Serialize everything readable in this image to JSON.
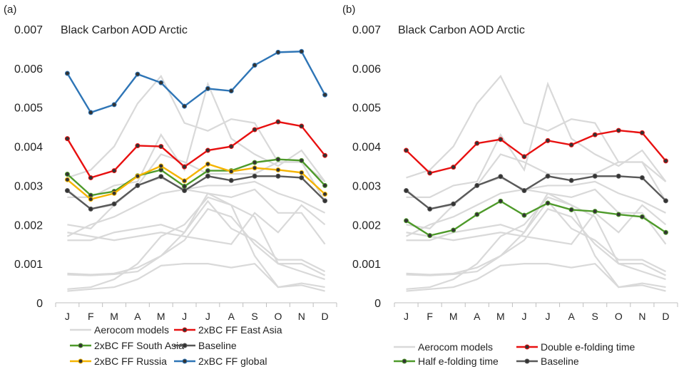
{
  "chart_data": [
    {
      "type": "line",
      "panel_label": "(a)",
      "title": "Black Carbon AOD Arctic",
      "categories": [
        "J",
        "F",
        "M",
        "A",
        "M",
        "J",
        "J",
        "A",
        "S",
        "O",
        "N",
        "D"
      ],
      "ylim": [
        0,
        0.007
      ],
      "yticks": [
        "0",
        "0.001",
        "0.002",
        "0.003",
        "0.004",
        "0.005",
        "0.006",
        "0.007"
      ],
      "grid": false,
      "background_models": [
        [
          0.0032,
          0.0034,
          0.004,
          0.0051,
          0.0058,
          0.0046,
          0.0044,
          0.0047,
          0.0046,
          0.0036,
          0.0036,
          0.0031
        ],
        [
          0.0027,
          0.0027,
          0.003,
          0.0031,
          0.0043,
          0.0034,
          0.0056,
          0.0042,
          0.0038,
          0.0035,
          0.0039,
          0.0031
        ],
        [
          0.0029,
          0.0024,
          0.0025,
          0.003,
          0.0038,
          0.0036,
          0.0033,
          0.0033,
          0.0033,
          0.0036,
          0.0036,
          0.0026
        ],
        [
          0.002,
          0.0019,
          0.0025,
          0.003,
          0.0032,
          0.0029,
          0.003,
          0.003,
          0.0031,
          0.0028,
          0.0026,
          0.0023
        ],
        [
          0.0018,
          0.0017,
          0.0016,
          0.0017,
          0.0018,
          0.0017,
          0.0016,
          0.0015,
          0.0023,
          0.0018,
          0.0025,
          0.002
        ],
        [
          0.0017,
          0.002,
          0.0022,
          0.0025,
          0.0028,
          0.0029,
          0.0028,
          0.0027,
          0.0029,
          0.0023,
          0.0023,
          0.0015
        ],
        [
          0.0016,
          0.0016,
          0.0018,
          0.0019,
          0.002,
          0.0018,
          0.0026,
          0.0019,
          0.0016,
          0.0011,
          0.0011,
          0.0008
        ],
        [
          0.00075,
          0.00072,
          0.00075,
          0.0009,
          0.0012,
          0.0018,
          0.0028,
          0.0025,
          0.0022,
          0.001,
          0.001,
          0.0007
        ],
        [
          0.00072,
          0.0007,
          0.00073,
          0.0008,
          0.0012,
          0.0016,
          0.0024,
          0.0022,
          0.0015,
          0.001,
          0.0008,
          0.0006
        ],
        [
          0.00035,
          0.0004,
          0.0006,
          0.001,
          0.0017,
          0.002,
          0.0027,
          0.0025,
          0.0012,
          0.0004,
          0.0005,
          0.0004
        ],
        [
          0.0003,
          0.00035,
          0.0004,
          0.0006,
          0.00095,
          0.001,
          0.001,
          0.0009,
          0.001,
          0.0004,
          0.00045,
          0.0003
        ]
      ],
      "series": [
        {
          "name": "2xBC FF global",
          "color": "#2e75b6",
          "values": [
            0.00587,
            0.00487,
            0.00507,
            0.00585,
            0.00563,
            0.00503,
            0.00548,
            0.00542,
            0.00608,
            0.00641,
            0.00643,
            0.00532
          ]
        },
        {
          "name": "2xBC FF East Asia",
          "color": "#e81010",
          "values": [
            0.0042,
            0.0032,
            0.00338,
            0.00402,
            0.004,
            0.00348,
            0.0039,
            0.004,
            0.00443,
            0.00463,
            0.00452,
            0.00377
          ]
        },
        {
          "name": "2xBC FF South Asia",
          "color": "#4e9a2a",
          "values": [
            0.00329,
            0.00275,
            0.00285,
            0.00325,
            0.0034,
            0.00298,
            0.00338,
            0.00338,
            0.00359,
            0.00367,
            0.00364,
            0.003
          ]
        },
        {
          "name": "2xBC FF Russia",
          "color": "#f5b400",
          "values": [
            0.00315,
            0.00265,
            0.0028,
            0.00324,
            0.0035,
            0.00312,
            0.00355,
            0.00336,
            0.00345,
            0.0034,
            0.00333,
            0.00278
          ]
        },
        {
          "name": "Baseline",
          "color": "#595959",
          "values": [
            0.00287,
            0.0024,
            0.00253,
            0.003,
            0.00323,
            0.00287,
            0.00324,
            0.00313,
            0.00324,
            0.00324,
            0.0032,
            0.00261
          ]
        }
      ],
      "legend": [
        {
          "label": "Aerocom models",
          "color": "#d9d9d9",
          "marker": false
        },
        {
          "label": "2xBC FF East Asia",
          "color": "#e81010",
          "marker": true
        },
        {
          "label": "2xBC FF South Asia",
          "color": "#4e9a2a",
          "marker": true
        },
        {
          "label": "Baseline",
          "color": "#595959",
          "marker": true
        },
        {
          "label": "2xBC FF Russia",
          "color": "#f5b400",
          "marker": true
        },
        {
          "label": "2xBC FF global",
          "color": "#2e75b6",
          "marker": true
        }
      ],
      "legend_placement": "bottom"
    },
    {
      "type": "line",
      "panel_label": "(b)",
      "title": "Black Carbon AOD Arctic",
      "categories": [
        "J",
        "F",
        "M",
        "A",
        "M",
        "J",
        "J",
        "A",
        "S",
        "O",
        "N",
        "D"
      ],
      "ylim": [
        0,
        0.007
      ],
      "yticks": [
        "0",
        "0.001",
        "0.002",
        "0.003",
        "0.004",
        "0.005",
        "0.006",
        "0.007"
      ],
      "grid": false,
      "background_models": [
        [
          0.0032,
          0.0034,
          0.004,
          0.0051,
          0.0058,
          0.0046,
          0.0044,
          0.0047,
          0.0046,
          0.0036,
          0.0036,
          0.0031
        ],
        [
          0.0027,
          0.0027,
          0.003,
          0.0031,
          0.0043,
          0.0034,
          0.0056,
          0.0042,
          0.0038,
          0.0035,
          0.0039,
          0.0031
        ],
        [
          0.0029,
          0.0024,
          0.0025,
          0.003,
          0.0038,
          0.0036,
          0.0033,
          0.0033,
          0.0033,
          0.0036,
          0.0036,
          0.0026
        ],
        [
          0.002,
          0.0019,
          0.0025,
          0.003,
          0.0032,
          0.0029,
          0.003,
          0.003,
          0.0031,
          0.0028,
          0.0026,
          0.0023
        ],
        [
          0.0018,
          0.0017,
          0.0016,
          0.0017,
          0.0018,
          0.0017,
          0.0016,
          0.0015,
          0.0023,
          0.0018,
          0.0025,
          0.002
        ],
        [
          0.0017,
          0.002,
          0.0022,
          0.0025,
          0.0028,
          0.0029,
          0.0028,
          0.0027,
          0.0029,
          0.0023,
          0.0023,
          0.0015
        ],
        [
          0.0016,
          0.0016,
          0.0018,
          0.0019,
          0.002,
          0.0018,
          0.0026,
          0.0019,
          0.0016,
          0.0011,
          0.0011,
          0.0008
        ],
        [
          0.00075,
          0.00072,
          0.00075,
          0.0009,
          0.0012,
          0.0018,
          0.0028,
          0.0025,
          0.0022,
          0.001,
          0.001,
          0.0007
        ],
        [
          0.00072,
          0.0007,
          0.00073,
          0.0008,
          0.0012,
          0.0016,
          0.0024,
          0.0022,
          0.0015,
          0.001,
          0.0008,
          0.0006
        ],
        [
          0.00035,
          0.0004,
          0.0006,
          0.001,
          0.0017,
          0.002,
          0.0027,
          0.0025,
          0.0012,
          0.0004,
          0.0005,
          0.0004
        ],
        [
          0.0003,
          0.00035,
          0.0004,
          0.0006,
          0.00095,
          0.001,
          0.001,
          0.0009,
          0.001,
          0.0004,
          0.00045,
          0.0003
        ]
      ],
      "series": [
        {
          "name": "Double e-folding time",
          "color": "#e81010",
          "values": [
            0.0039,
            0.00332,
            0.00347,
            0.00408,
            0.00418,
            0.00374,
            0.00415,
            0.00404,
            0.0043,
            0.00441,
            0.00435,
            0.00363
          ]
        },
        {
          "name": "Baseline",
          "color": "#595959",
          "values": [
            0.00287,
            0.0024,
            0.00253,
            0.003,
            0.00323,
            0.00287,
            0.00324,
            0.00313,
            0.00324,
            0.00324,
            0.0032,
            0.00261
          ]
        },
        {
          "name": "Half e-folding time",
          "color": "#4e9a2a",
          "values": [
            0.0021,
            0.00172,
            0.00186,
            0.00226,
            0.0026,
            0.00224,
            0.00255,
            0.00238,
            0.00234,
            0.00226,
            0.0022,
            0.0018
          ]
        }
      ],
      "legend": [
        {
          "label": "Aerocom models",
          "color": "#d9d9d9",
          "marker": false
        },
        {
          "label": "Double e-folding time",
          "color": "#e81010",
          "marker": true
        },
        {
          "label": "Half e-folding time",
          "color": "#4e9a2a",
          "marker": true
        },
        {
          "label": "Baseline",
          "color": "#595959",
          "marker": true
        }
      ],
      "legend_placement": "bottom"
    }
  ]
}
